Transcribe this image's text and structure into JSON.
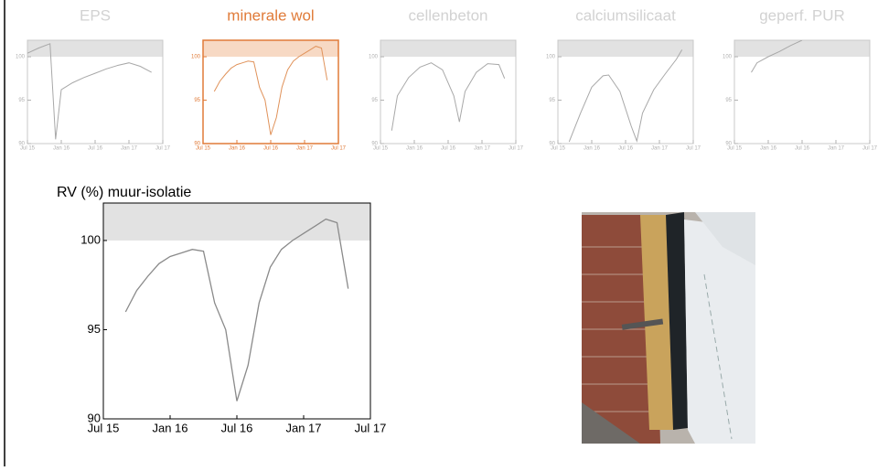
{
  "chart_data": [
    {
      "type": "line",
      "title": "EPS",
      "title_color": "#d2d2d2",
      "color": "#a8a8a8",
      "tick_color": "#b0b0b0",
      "frame_color": "#c8c8c8",
      "shade_from": 100,
      "x": [
        "2015-07",
        "2015-09",
        "2015-11",
        "2015-12",
        "2016-01",
        "2016-03",
        "2016-05",
        "2016-07",
        "2016-09",
        "2016-11",
        "2017-01",
        "2017-03",
        "2017-05"
      ],
      "values": [
        100.4,
        101.0,
        101.5,
        90.5,
        96.2,
        97.0,
        97.6,
        98.1,
        98.6,
        99.0,
        99.3,
        98.9,
        98.2
      ],
      "xlim": [
        "2015-07",
        "2017-07"
      ],
      "ylim": [
        90,
        101.9
      ],
      "xticks": [
        {
          "value": "2015-07",
          "label": "Jul 15"
        },
        {
          "value": "2016-01",
          "label": "Jan 16"
        },
        {
          "value": "2016-07",
          "label": "Jul 16"
        },
        {
          "value": "2017-01",
          "label": "Jan 17"
        },
        {
          "value": "2017-07",
          "label": "Jul 17"
        }
      ],
      "yticks": [
        90,
        95,
        100
      ]
    },
    {
      "type": "line",
      "title": "minerale wol",
      "title_color": "#e07b39",
      "color": "#e0925a",
      "tick_color": "#e07b39",
      "frame_color": "#e07b39",
      "shade_from": 100,
      "shade_color": "#f7d9c4",
      "x": [
        "2015-09",
        "2015-10",
        "2015-11",
        "2015-12",
        "2016-01",
        "2016-02",
        "2016-03",
        "2016-04",
        "2016-05",
        "2016-06",
        "2016-07",
        "2016-08",
        "2016-09",
        "2016-10",
        "2016-11",
        "2016-12",
        "2017-01",
        "2017-02",
        "2017-03",
        "2017-04",
        "2017-05"
      ],
      "values": [
        96.0,
        97.2,
        98.0,
        98.7,
        99.1,
        99.3,
        99.5,
        99.4,
        96.5,
        95.0,
        91.0,
        93.0,
        96.5,
        98.5,
        99.5,
        100.0,
        100.4,
        100.8,
        101.2,
        101.0,
        97.3
      ],
      "xlim": [
        "2015-07",
        "2017-07"
      ],
      "ylim": [
        90,
        101.9
      ],
      "xticks": [
        {
          "value": "2015-07",
          "label": "Jul 15"
        },
        {
          "value": "2016-01",
          "label": "Jan 16"
        },
        {
          "value": "2016-07",
          "label": "Jul 16"
        },
        {
          "value": "2017-01",
          "label": "Jan 17"
        },
        {
          "value": "2017-07",
          "label": "Jul 17"
        }
      ],
      "yticks": [
        90,
        95,
        100
      ]
    },
    {
      "type": "line",
      "title": "cellenbeton",
      "title_color": "#d2d2d2",
      "color": "#a8a8a8",
      "tick_color": "#b0b0b0",
      "frame_color": "#c8c8c8",
      "shade_from": 100,
      "x": [
        "2015-09",
        "2015-10",
        "2015-12",
        "2016-02",
        "2016-04",
        "2016-06",
        "2016-08",
        "2016-09",
        "2016-10",
        "2016-12",
        "2017-02",
        "2017-04",
        "2017-05"
      ],
      "values": [
        91.5,
        95.5,
        97.6,
        98.8,
        99.3,
        98.5,
        95.5,
        92.5,
        96.0,
        98.2,
        99.2,
        99.1,
        97.5
      ],
      "xlim": [
        "2015-07",
        "2017-07"
      ],
      "ylim": [
        90,
        101.9
      ],
      "xticks": [
        {
          "value": "2015-07",
          "label": "Jul 15"
        },
        {
          "value": "2016-01",
          "label": "Jan 16"
        },
        {
          "value": "2016-07",
          "label": "Jul 16"
        },
        {
          "value": "2017-01",
          "label": "Jan 17"
        },
        {
          "value": "2017-07",
          "label": "Jul 17"
        }
      ],
      "yticks": [
        90,
        95,
        100
      ]
    },
    {
      "type": "line",
      "title": "calciumsilicaat",
      "title_color": "#d2d2d2",
      "color": "#a8a8a8",
      "tick_color": "#b0b0b0",
      "frame_color": "#c8c8c8",
      "shade_from": 100,
      "x": [
        "2015-09",
        "2015-11",
        "2016-01",
        "2016-03",
        "2016-04",
        "2016-06",
        "2016-08",
        "2016-09",
        "2016-10",
        "2016-12",
        "2017-02",
        "2017-04",
        "2017-05"
      ],
      "values": [
        90.2,
        93.5,
        96.5,
        97.8,
        97.9,
        96.0,
        92.0,
        90.3,
        93.5,
        96.2,
        98.0,
        99.7,
        100.8
      ],
      "xlim": [
        "2015-07",
        "2017-07"
      ],
      "ylim": [
        90,
        101.9
      ],
      "xticks": [
        {
          "value": "2015-07",
          "label": "Jul 15"
        },
        {
          "value": "2016-01",
          "label": "Jan 16"
        },
        {
          "value": "2016-07",
          "label": "Jul 16"
        },
        {
          "value": "2017-01",
          "label": "Jan 17"
        },
        {
          "value": "2017-07",
          "label": "Jul 17"
        }
      ],
      "yticks": [
        90,
        95,
        100
      ]
    },
    {
      "type": "line",
      "title": "geperf. PUR",
      "title_color": "#d2d2d2",
      "color": "#a8a8a8",
      "tick_color": "#b0b0b0",
      "frame_color": "#c8c8c8",
      "shade_from": 100,
      "x": [
        "2015-10",
        "2015-11",
        "2016-01",
        "2016-03",
        "2016-05",
        "2016-07"
      ],
      "values": [
        98.2,
        99.3,
        100.0,
        100.6,
        101.3,
        101.9
      ],
      "xlim": [
        "2015-07",
        "2017-07"
      ],
      "ylim": [
        90,
        101.9
      ],
      "xticks": [
        {
          "value": "2015-07",
          "label": "Jul 15"
        },
        {
          "value": "2016-01",
          "label": "Jan 16"
        },
        {
          "value": "2016-07",
          "label": "Jul 16"
        },
        {
          "value": "2017-01",
          "label": "Jan 17"
        },
        {
          "value": "2017-07",
          "label": "Jul 17"
        }
      ],
      "yticks": [
        90,
        95,
        100
      ]
    },
    {
      "type": "line",
      "title": "RV (%) muur-isolatie",
      "title_color": "#000000",
      "color": "#8a8a8a",
      "tick_color": "#000000",
      "frame_color": "#000000",
      "shade_from": 100,
      "x": [
        "2015-09",
        "2015-10",
        "2015-11",
        "2015-12",
        "2016-01",
        "2016-02",
        "2016-03",
        "2016-04",
        "2016-05",
        "2016-06",
        "2016-07",
        "2016-08",
        "2016-09",
        "2016-10",
        "2016-11",
        "2016-12",
        "2017-01",
        "2017-02",
        "2017-03",
        "2017-04",
        "2017-05"
      ],
      "values": [
        96.0,
        97.2,
        98.0,
        98.7,
        99.1,
        99.3,
        99.5,
        99.4,
        96.5,
        95.0,
        91.0,
        93.0,
        96.5,
        98.5,
        99.5,
        100.0,
        100.4,
        100.8,
        101.2,
        101.0,
        97.3
      ],
      "xlim": [
        "2015-07",
        "2017-07"
      ],
      "ylim": [
        90,
        102.1
      ],
      "xticks": [
        {
          "value": "2015-07",
          "label": "Jul 15"
        },
        {
          "value": "2016-01",
          "label": "Jan 16"
        },
        {
          "value": "2016-07",
          "label": "Jul 16"
        },
        {
          "value": "2017-01",
          "label": "Jan 17"
        },
        {
          "value": "2017-07",
          "label": "Jul 17"
        }
      ],
      "yticks": [
        90,
        95,
        100
      ]
    }
  ]
}
